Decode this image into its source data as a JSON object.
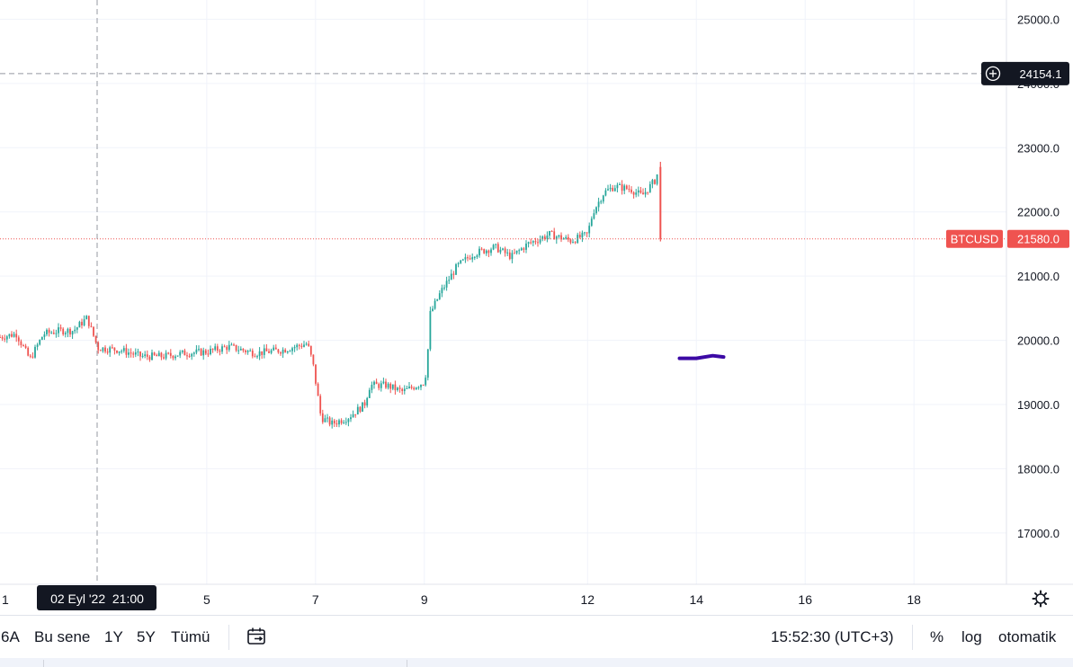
{
  "chart_data": {
    "type": "candlestick",
    "symbol": "BTCUSD",
    "last_price": "21580.0",
    "crosshair_price": "24154.1",
    "crosshair_time": "02 Eyl '22  21:00",
    "y_ticks": [
      "25000.0",
      "24000.0",
      "23000.0",
      "22000.0",
      "21000.0",
      "20000.0",
      "19000.0",
      "18000.0",
      "17000.0"
    ],
    "ylim": [
      16200,
      25300
    ],
    "x_ticks": [
      "5",
      "7",
      "9",
      "12",
      "14",
      "16",
      "18"
    ],
    "x_tick_values": [
      5,
      7,
      9,
      12,
      14,
      16,
      18
    ],
    "x_partial_label": "1",
    "xlim": [
      1.2,
      19.7
    ],
    "series_points": [
      [
        1.2,
        20050
      ],
      [
        1.5,
        20100
      ],
      [
        1.75,
        19700
      ],
      [
        2.0,
        20100
      ],
      [
        2.3,
        20150
      ],
      [
        2.55,
        20150
      ],
      [
        2.8,
        20350
      ],
      [
        3.0,
        19880
      ],
      [
        3.4,
        19850
      ],
      [
        3.8,
        19750
      ],
      [
        4.2,
        19750
      ],
      [
        4.6,
        19800
      ],
      [
        5.0,
        19820
      ],
      [
        5.4,
        19900
      ],
      [
        5.9,
        19800
      ],
      [
        6.4,
        19850
      ],
      [
        6.85,
        19950
      ],
      [
        6.95,
        19650
      ],
      [
        7.1,
        18800
      ],
      [
        7.3,
        18700
      ],
      [
        7.6,
        18800
      ],
      [
        7.9,
        19000
      ],
      [
        8.0,
        19300
      ],
      [
        8.3,
        19300
      ],
      [
        8.6,
        19200
      ],
      [
        9.0,
        19350
      ],
      [
        9.05,
        19600
      ],
      [
        9.1,
        20400
      ],
      [
        9.3,
        20750
      ],
      [
        9.6,
        21150
      ],
      [
        9.9,
        21350
      ],
      [
        10.3,
        21450
      ],
      [
        10.6,
        21300
      ],
      [
        10.9,
        21500
      ],
      [
        11.3,
        21650
      ],
      [
        11.7,
        21550
      ],
      [
        12.0,
        21650
      ],
      [
        12.1,
        22000
      ],
      [
        12.3,
        22300
      ],
      [
        12.5,
        22400
      ],
      [
        12.8,
        22350
      ],
      [
        13.0,
        22250
      ],
      [
        13.25,
        22500
      ],
      [
        13.32,
        22700
      ],
      [
        13.34,
        21580
      ]
    ],
    "last_candle": {
      "x": 13.34,
      "open": 22700,
      "high": 22780,
      "low": 21540,
      "close": 21580
    },
    "drawing": {
      "type": "brush",
      "points": [
        [
          13.69,
          19720
        ],
        [
          14.0,
          19720
        ],
        [
          14.3,
          19760
        ],
        [
          14.5,
          19740
        ]
      ],
      "color": "#3c0aa5"
    },
    "colors": {
      "up": "#26a69a",
      "down": "#ef5350",
      "last_price": "#ef5350",
      "grid": "#f0f3fa",
      "crosshair": "#9598a1"
    }
  },
  "bottom_bar": {
    "ranges": [
      "6A",
      "Bu sene",
      "1Y",
      "5Y",
      "Tümü"
    ],
    "time": "15:52:30 (UTC+3)",
    "percent": "%",
    "log": "log",
    "auto": "otomatik"
  },
  "icons": {
    "calendar": "calendar-range-icon",
    "settings": "gear-icon",
    "add": "plus-circle-icon"
  }
}
